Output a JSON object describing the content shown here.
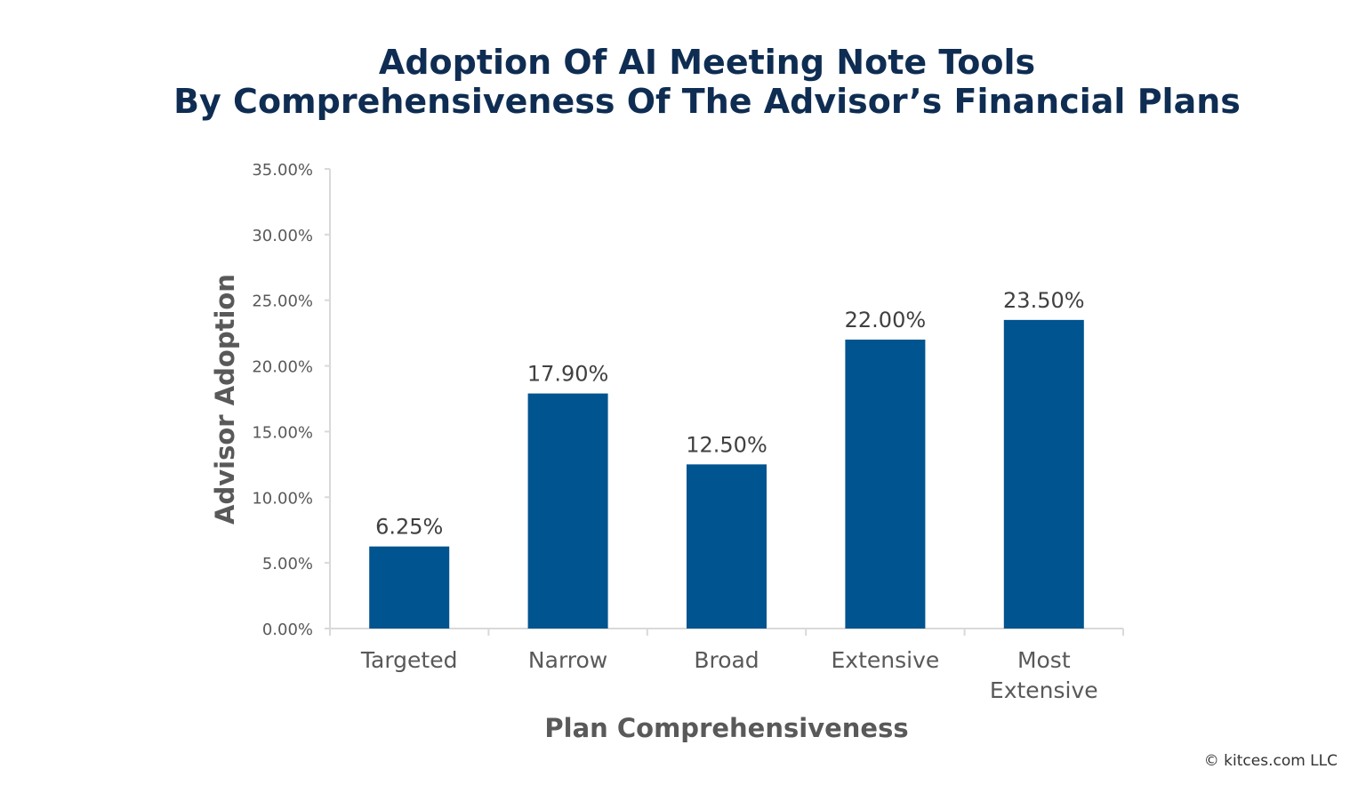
{
  "chart_data": {
    "type": "bar",
    "title": [
      "Adoption Of AI Meeting Note Tools",
      "By Comprehensiveness Of The Advisor’s Financial Plans"
    ],
    "xlabel": "Plan Comprehensiveness",
    "ylabel": "Advisor Adoption",
    "categories": [
      [
        "Targeted"
      ],
      [
        "Narrow"
      ],
      [
        "Broad"
      ],
      [
        "Extensive"
      ],
      [
        "Most",
        "Extensive"
      ]
    ],
    "values": [
      6.25,
      17.9,
      12.5,
      22.0,
      23.5
    ],
    "data_labels": [
      "6.25%",
      "17.90%",
      "12.50%",
      "22.00%",
      "23.50%"
    ],
    "ylim": [
      0,
      35
    ],
    "yticks": [
      0,
      5,
      10,
      15,
      20,
      25,
      30,
      35
    ],
    "ytick_labels": [
      "0.00%",
      "5.00%",
      "10.00%",
      "15.00%",
      "20.00%",
      "25.00%",
      "30.00%",
      "35.00%"
    ],
    "grid": false,
    "legend": "none",
    "bar_color": "#00548f",
    "title_color": "#0f2d52"
  },
  "credit": "© kitces.com LLC"
}
